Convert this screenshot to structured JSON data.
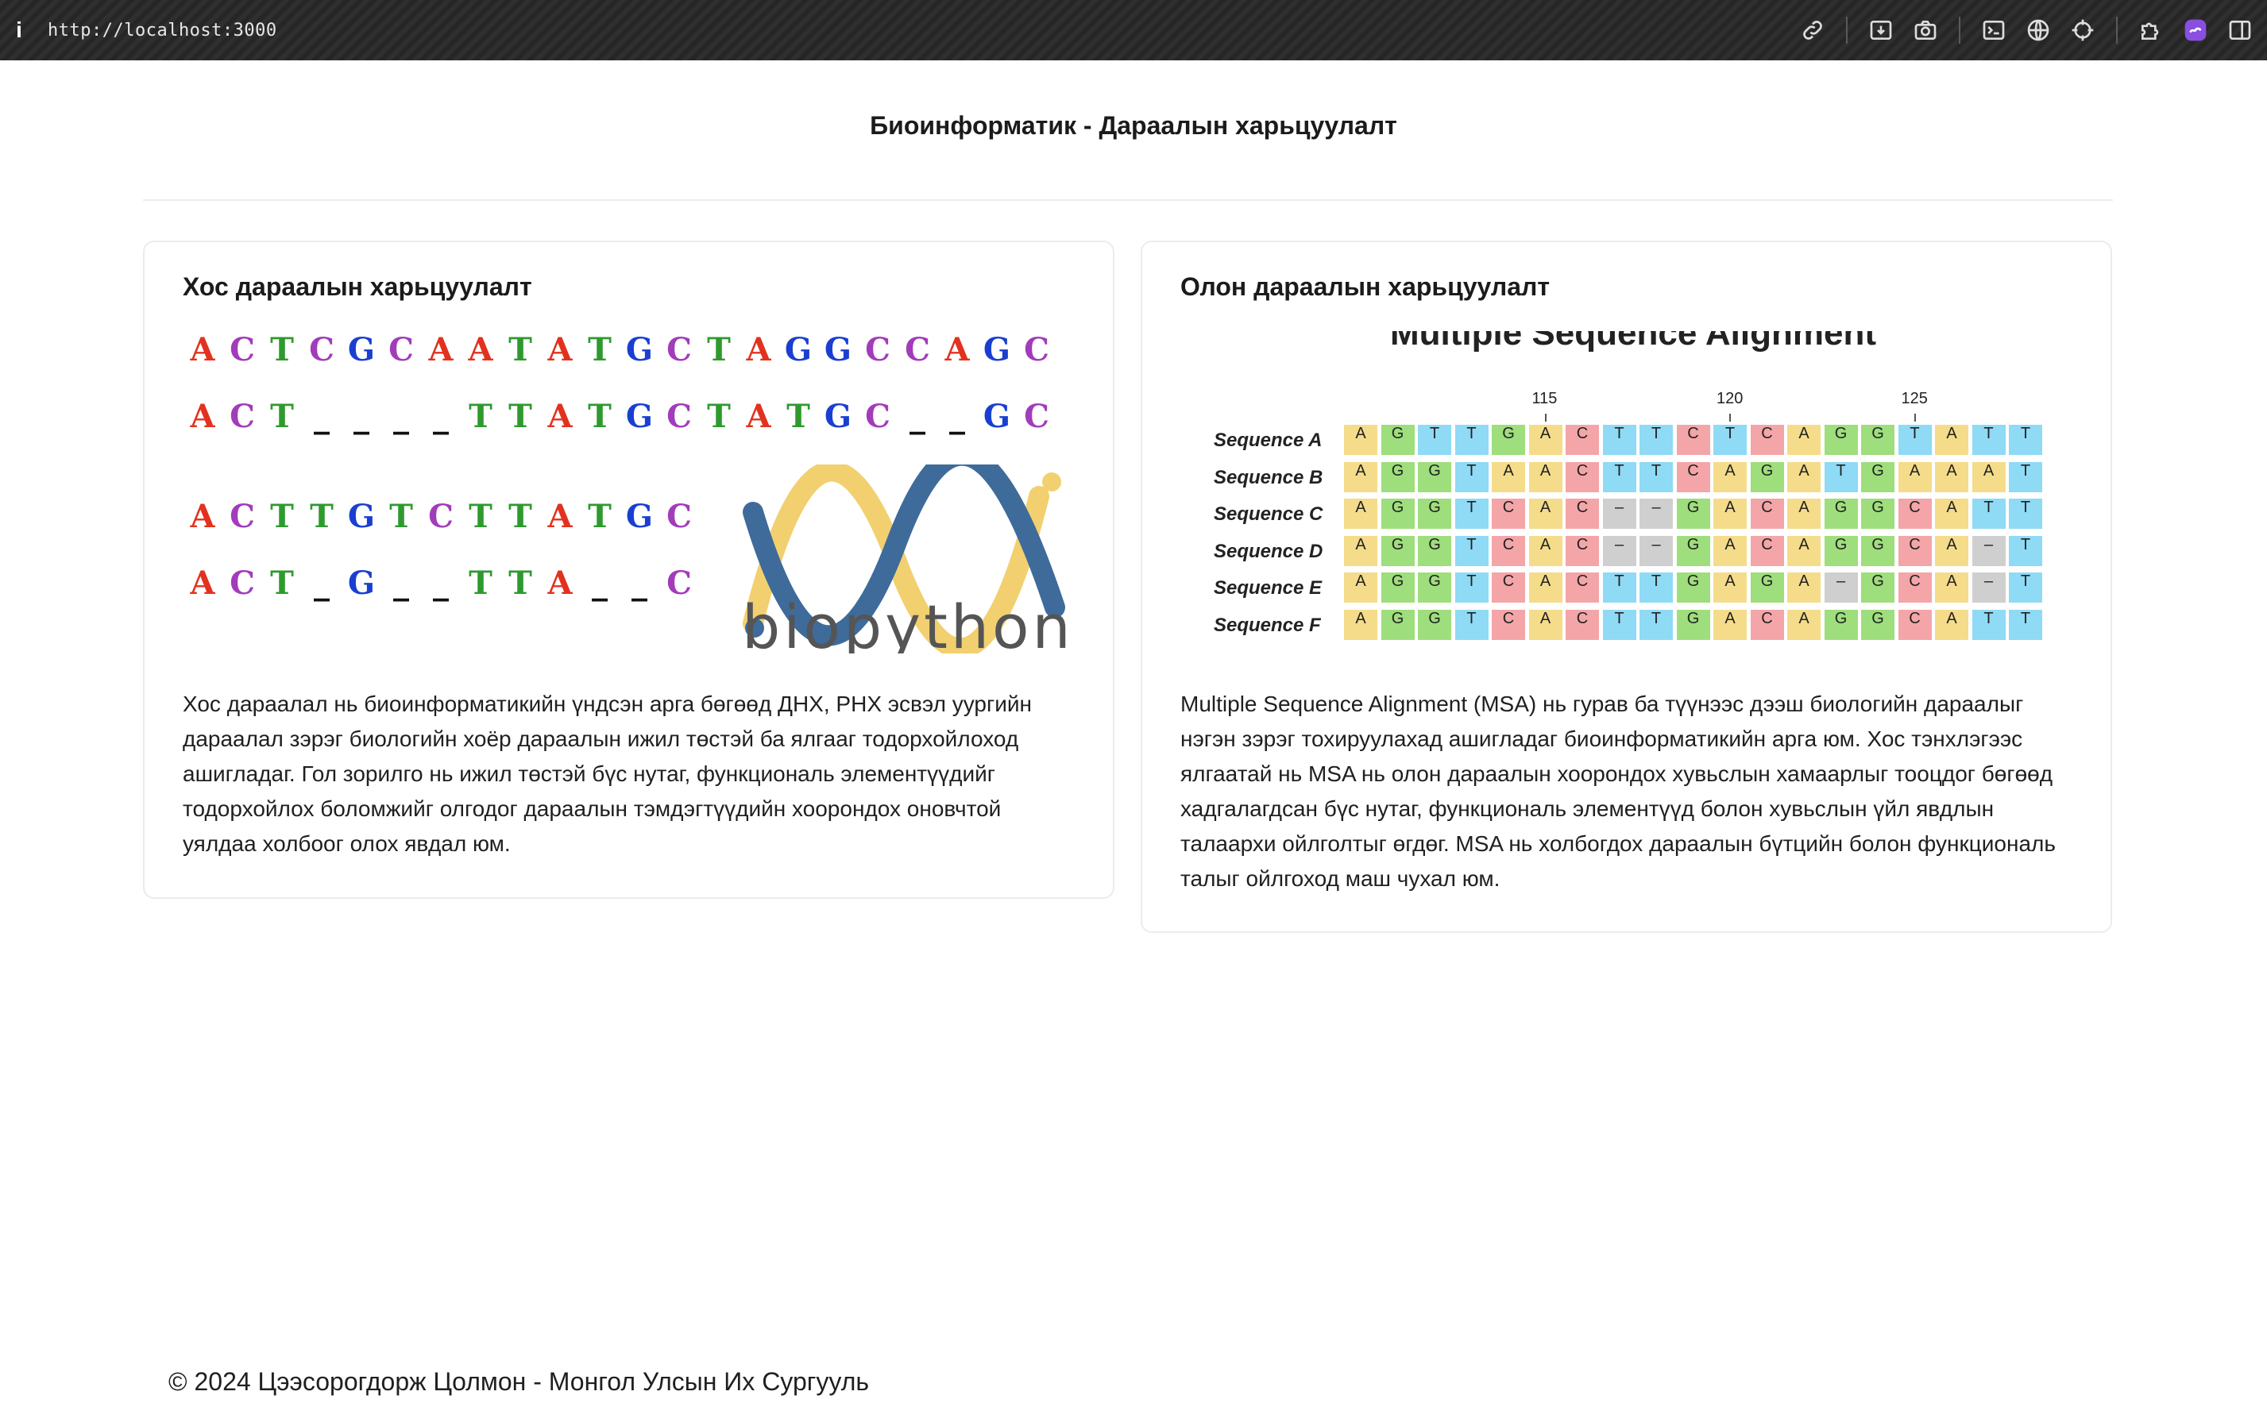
{
  "browser": {
    "url": "http://localhost:3000",
    "info_glyph": "i",
    "icons": [
      "link-icon",
      "download-icon",
      "camera-icon",
      "terminal-icon",
      "globe-icon",
      "crosshair-icon",
      "extension-icon",
      "assistant-icon",
      "sidebar-toggle-icon"
    ]
  },
  "page": {
    "title": "Биоинформатик - Дараалын харьцуулалт"
  },
  "pairwise": {
    "heading": "Хос дараалын харьцуулалт",
    "rows": [
      "ACTCGCAATATGCTAGGCCAGC",
      "ACT____TTATGCTATGC__GC",
      "ACTTGTCTTATGC",
      "ACT_G__TTA__C"
    ],
    "logo_text": "biopython",
    "description": "Хос дараалал нь биоинформатикийн үндсэн арга бөгөөд ДНХ, РНХ эсвэл уургийн дараалал зэрэг биологийн хоёр дараалын ижил төстэй ба ялгааг тодорхойлоход ашигладаг. Гол зорилго нь ижил төстэй бүс нутаг, функциональ элементүүдийг тодорхойлох боломжийг олгодог дараалын тэмдэгтүүдийн хоорондох оновчтой уялдаа холбоог олох явдал юм."
  },
  "msa": {
    "heading": "Олон дараалын харьцуулалт",
    "figure_title": "Multiple Sequence Alignment",
    "ticks": [
      "115",
      "120",
      "125"
    ],
    "rows": [
      {
        "label": "Sequence A",
        "seq": "AGTTGACTTCTCAGGTATT"
      },
      {
        "label": "Sequence B",
        "seq": "AGGTAACTTCAGATGAAAT"
      },
      {
        "label": "Sequence C",
        "seq": "AGGTCAC--GACAGGCATT"
      },
      {
        "label": "Sequence D",
        "seq": "AGGTCAC--GACAGGCA-T"
      },
      {
        "label": "Sequence E",
        "seq": "AGGTCACTTGAGA-GCA-T"
      },
      {
        "label": "Sequence F",
        "seq": "AGGTCACTTGACAGGCATT"
      }
    ],
    "description": "Multiple Sequence Alignment (MSA) нь гурав ба түүнээс дээш биологийн дараалыг нэгэн зэрэг тохируулахад ашигладаг биоинформатикийн арга юм. Хос тэнхлэгээс ялгаатай нь MSA нь олон дараалын хоорондох хувьслын хамаарлыг тооцдог бөгөөд хадгалагдсан бүс нутаг, функциональ элементүүд болон хувьслын үйл явдлын талаархи ойлголтыг өгдөг. MSA нь холбогдох дараалын бүтцийн болон функциональ талыг ойлгоход маш чухал юм."
  },
  "footer": {
    "text": "© 2024 Цээсорогдорж Цолмон - Монгол Улсын Их Сургууль"
  },
  "colors": {
    "nucleotide_A": "#e2321f",
    "nucleotide_C": "#a23cba",
    "nucleotide_T": "#2e9a2e",
    "nucleotide_G": "#1a3fd0"
  }
}
